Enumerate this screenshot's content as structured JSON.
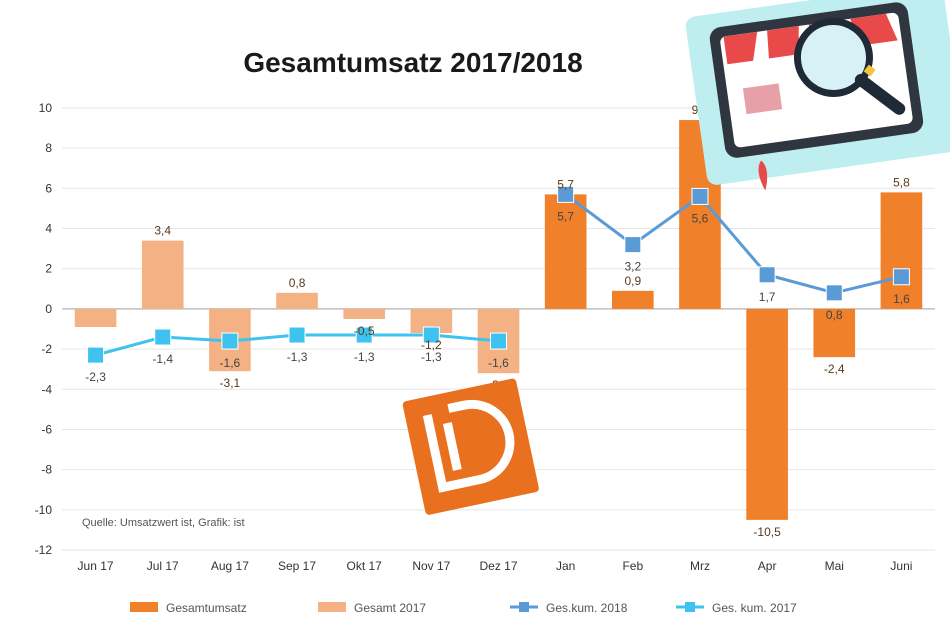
{
  "chart_data": {
    "type": "bar",
    "title": "Gesamtumsatz 2017/2018",
    "categories": [
      "Jun 17",
      "Jul 17",
      "Aug 17",
      "Sep 17",
      "Okt 17",
      "Nov 17",
      "Dez 17",
      "Jan",
      "Feb",
      "Mrz",
      "Apr",
      "Mai",
      "Juni"
    ],
    "ylim": [
      -12,
      10
    ],
    "yticks": [
      10,
      8,
      6,
      4,
      2,
      0,
      -2,
      -4,
      -6,
      -8,
      -10,
      -12
    ],
    "grid": true,
    "legend_position": "bottom",
    "source_note": "Quelle: Umsatzwert ist, Grafik: ist",
    "series": [
      {
        "name": "Gesamtumsatz",
        "kind": "bar",
        "color": "#f0802a",
        "values": [
          null,
          null,
          null,
          null,
          null,
          null,
          null,
          5.7,
          0.9,
          9.4,
          -10.5,
          -2.4,
          5.8
        ],
        "labels": [
          "",
          "",
          "",
          "",
          "",
          "",
          "",
          "5,7",
          "0,9",
          "9,4",
          "-10,5",
          "-2,4",
          "5,8"
        ]
      },
      {
        "name": "Gesamt 2017",
        "kind": "bar",
        "color": "#f4b183",
        "values": [
          -0.9,
          3.4,
          -3.1,
          0.8,
          -0.5,
          -1.2,
          -3.2,
          null,
          null,
          null,
          null,
          null,
          null
        ],
        "labels": [
          "",
          "3,4",
          "-3,1",
          "0,8",
          "-0,5",
          "-1,2",
          "-3,2",
          "",
          "",
          "",
          "",
          "",
          ""
        ]
      },
      {
        "name": "Ges.kum. 2018",
        "kind": "line",
        "color": "#5b9bd5",
        "values": [
          null,
          null,
          null,
          null,
          null,
          null,
          null,
          5.7,
          3.2,
          5.6,
          1.7,
          0.8,
          1.6
        ],
        "labels": [
          "",
          "",
          "",
          "",
          "",
          "",
          "",
          "5,7",
          "3,2",
          "5,6",
          "1,7",
          "0,8",
          "1,6"
        ]
      },
      {
        "name": "Ges. kum. 2017",
        "kind": "line",
        "color": "#3ec3f0",
        "values": [
          -2.3,
          -1.4,
          -1.6,
          -1.3,
          -1.3,
          -1.3,
          -1.6,
          null,
          null,
          null,
          null,
          null,
          null
        ],
        "labels": [
          "-2,3",
          "-1,4",
          "-1,6",
          "-1,3",
          "-1,3",
          "-1,3",
          "-1,6",
          "",
          "",
          "",
          "",
          "",
          ""
        ]
      }
    ]
  }
}
